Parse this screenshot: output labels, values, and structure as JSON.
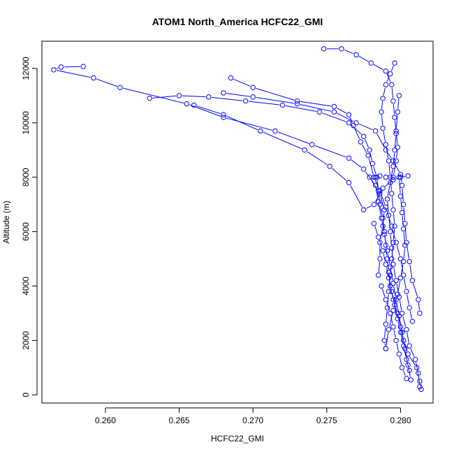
{
  "chart_data": {
    "type": "line",
    "title": "ATOM1 North_America HCFC22_GMI",
    "xlabel": "HCFC22_GMI",
    "ylabel": "Altitude (m)",
    "xlim": [
      0.2557,
      0.2822
    ],
    "ylim": [
      -300,
      13000
    ],
    "x_ticks": [
      0.26,
      0.265,
      0.27,
      0.275,
      0.28
    ],
    "x_tick_labels": [
      "0.260",
      "0.265",
      "0.270",
      "0.275",
      "0.280"
    ],
    "y_ticks": [
      0,
      2000,
      4000,
      6000,
      8000,
      10000,
      12000
    ],
    "y_tick_labels": [
      "0",
      "2000",
      "4000",
      "6000",
      "8000",
      "10000",
      "12000"
    ],
    "marker": "open-circle",
    "grid": false,
    "legend": "none",
    "color": "#0000ff",
    "series": [
      {
        "points": [
          [
            0.2814,
            200
          ],
          [
            0.2813,
            500
          ],
          [
            0.2811,
            1000
          ],
          [
            0.2805,
            1500
          ],
          [
            0.2802,
            2000
          ],
          [
            0.28,
            2500
          ],
          [
            0.2798,
            3000
          ],
          [
            0.2795,
            3500
          ],
          [
            0.2793,
            4000
          ],
          [
            0.2792,
            4500
          ],
          [
            0.2791,
            5000
          ],
          [
            0.279,
            5500
          ],
          [
            0.2789,
            6000
          ],
          [
            0.2788,
            6500
          ],
          [
            0.2786,
            7000
          ],
          [
            0.2785,
            7500
          ],
          [
            0.2784,
            8000
          ],
          [
            0.2781,
            8500
          ],
          [
            0.2779,
            9000
          ],
          [
            0.2775,
            9500
          ],
          [
            0.2765,
            10000
          ],
          [
            0.2745,
            10400
          ],
          [
            0.272,
            10650
          ],
          [
            0.2695,
            10800
          ],
          [
            0.267,
            10950
          ],
          [
            0.265,
            11000
          ],
          [
            0.263,
            10900
          ]
        ]
      },
      {
        "points": [
          [
            0.2813,
            300
          ],
          [
            0.2812,
            800
          ],
          [
            0.281,
            1300
          ],
          [
            0.2806,
            1800
          ],
          [
            0.2804,
            2400
          ],
          [
            0.2801,
            3000
          ],
          [
            0.2799,
            3600
          ],
          [
            0.2797,
            4200
          ],
          [
            0.2795,
            4800
          ],
          [
            0.2794,
            5400
          ],
          [
            0.2793,
            6000
          ],
          [
            0.2792,
            6600
          ],
          [
            0.2791,
            7200
          ],
          [
            0.2793,
            7800
          ],
          [
            0.2795,
            8400
          ],
          [
            0.2796,
            9000
          ],
          [
            0.2797,
            9600
          ],
          [
            0.2796,
            10200
          ],
          [
            0.2795,
            10800
          ],
          [
            0.2794,
            11400
          ],
          [
            0.279,
            11900
          ],
          [
            0.278,
            12200
          ],
          [
            0.277,
            12500
          ],
          [
            0.276,
            12720
          ],
          [
            0.2748,
            12720
          ]
        ]
      },
      {
        "points": [
          [
            0.2807,
            550
          ],
          [
            0.2805,
            1100
          ],
          [
            0.2803,
            1700
          ],
          [
            0.2801,
            2300
          ],
          [
            0.2799,
            2900
          ],
          [
            0.2797,
            3500
          ],
          [
            0.2795,
            4100
          ],
          [
            0.2793,
            4700
          ],
          [
            0.2791,
            5300
          ],
          [
            0.2789,
            5900
          ],
          [
            0.2787,
            6500
          ],
          [
            0.2785,
            7100
          ],
          [
            0.2783,
            7700
          ],
          [
            0.2775,
            8300
          ],
          [
            0.2765,
            8700
          ],
          [
            0.274,
            9200
          ],
          [
            0.2715,
            9700
          ],
          [
            0.268,
            10200
          ],
          [
            0.2655,
            10700
          ],
          [
            0.261,
            11300
          ],
          [
            0.2592,
            11650
          ],
          [
            0.2565,
            11950
          ],
          [
            0.257,
            12050
          ],
          [
            0.2585,
            12070
          ]
        ]
      },
      {
        "points": [
          [
            0.279,
            1700
          ],
          [
            0.2792,
            2400
          ],
          [
            0.2795,
            3100
          ],
          [
            0.2798,
            3700
          ],
          [
            0.28,
            4300
          ],
          [
            0.2802,
            4900
          ],
          [
            0.2803,
            5500
          ],
          [
            0.2802,
            6100
          ],
          [
            0.2801,
            6700
          ],
          [
            0.28,
            7300
          ],
          [
            0.2799,
            8000
          ],
          [
            0.2805,
            8050
          ],
          [
            0.28,
            8000
          ],
          [
            0.2795,
            7900
          ],
          [
            0.2788,
            7600
          ],
          [
            0.2782,
            7000
          ],
          [
            0.2775,
            6800
          ],
          [
            0.2765,
            7800
          ],
          [
            0.2752,
            8400
          ],
          [
            0.2735,
            9000
          ],
          [
            0.2705,
            9700
          ],
          [
            0.268,
            10300
          ],
          [
            0.266,
            10650
          ]
        ]
      },
      {
        "points": [
          [
            0.2808,
            2700
          ],
          [
            0.2806,
            3200
          ],
          [
            0.2804,
            3800
          ],
          [
            0.2802,
            4400
          ],
          [
            0.28,
            5000
          ],
          [
            0.2797,
            5600
          ],
          [
            0.2794,
            6200
          ],
          [
            0.279,
            6900
          ],
          [
            0.2786,
            7500
          ],
          [
            0.2782,
            8000
          ],
          [
            0.2778,
            8800
          ],
          [
            0.2773,
            9300
          ],
          [
            0.2768,
            9900
          ],
          [
            0.2765,
            10300
          ],
          [
            0.2755,
            10600
          ],
          [
            0.273,
            10800
          ],
          [
            0.27,
            11300
          ],
          [
            0.2685,
            11650
          ]
        ]
      },
      {
        "points": [
          [
            0.2796,
            12200
          ],
          [
            0.2793,
            11800
          ],
          [
            0.279,
            11400
          ],
          [
            0.2788,
            10900
          ],
          [
            0.2787,
            10400
          ],
          [
            0.2788,
            9800
          ],
          [
            0.279,
            9200
          ],
          [
            0.2792,
            8600
          ],
          [
            0.2793,
            8000
          ],
          [
            0.2794,
            7400
          ],
          [
            0.2795,
            6800
          ],
          [
            0.2796,
            6200
          ],
          [
            0.2795,
            5600
          ],
          [
            0.2794,
            5000
          ],
          [
            0.2793,
            4400
          ],
          [
            0.2792,
            3800
          ],
          [
            0.2791,
            3200
          ],
          [
            0.279,
            2600
          ],
          [
            0.2789,
            2000
          ],
          [
            0.279,
            1700
          ]
        ]
      },
      {
        "points": [
          [
            0.2799,
            11000
          ],
          [
            0.2798,
            10400
          ],
          [
            0.2797,
            9700
          ],
          [
            0.2798,
            9100
          ],
          [
            0.2797,
            8600
          ],
          [
            0.2795,
            8000
          ],
          [
            0.279,
            8000
          ],
          [
            0.2786,
            8050
          ],
          [
            0.2783,
            8000
          ],
          [
            0.2779,
            8000
          ],
          [
            0.2786,
            7400
          ],
          [
            0.2789,
            6800
          ],
          [
            0.2788,
            6200
          ],
          [
            0.2786,
            5600
          ],
          [
            0.2786,
            5000
          ],
          [
            0.2785,
            4400
          ]
        ]
      },
      {
        "points": [
          [
            0.2813,
            3000
          ],
          [
            0.2812,
            3500
          ],
          [
            0.2808,
            4200
          ],
          [
            0.2806,
            4900
          ],
          [
            0.2804,
            5600
          ],
          [
            0.2803,
            6300
          ],
          [
            0.2802,
            7000
          ],
          [
            0.2801,
            7700
          ],
          [
            0.28,
            8100
          ],
          [
            0.2795,
            8600
          ],
          [
            0.279,
            9000
          ],
          [
            0.2783,
            9700
          ],
          [
            0.277,
            10000
          ],
          [
            0.2755,
            10400
          ],
          [
            0.273,
            10700
          ],
          [
            0.27,
            10950
          ],
          [
            0.268,
            11100
          ]
        ]
      },
      {
        "points": [
          [
            0.2782,
            6300
          ],
          [
            0.2785,
            5800
          ],
          [
            0.2788,
            5300
          ],
          [
            0.279,
            4800
          ],
          [
            0.2792,
            4300
          ],
          [
            0.2794,
            3800
          ],
          [
            0.2796,
            3300
          ],
          [
            0.2798,
            2800
          ],
          [
            0.28,
            2300
          ],
          [
            0.2802,
            1800
          ],
          [
            0.2804,
            1300
          ],
          [
            0.2806,
            900
          ]
        ]
      },
      {
        "points": [
          [
            0.2787,
            4000
          ],
          [
            0.279,
            3500
          ],
          [
            0.2793,
            3000
          ],
          [
            0.2795,
            2500
          ],
          [
            0.2797,
            2000
          ],
          [
            0.2799,
            1500
          ],
          [
            0.2801,
            1000
          ],
          [
            0.2804,
            600
          ]
        ]
      }
    ]
  }
}
